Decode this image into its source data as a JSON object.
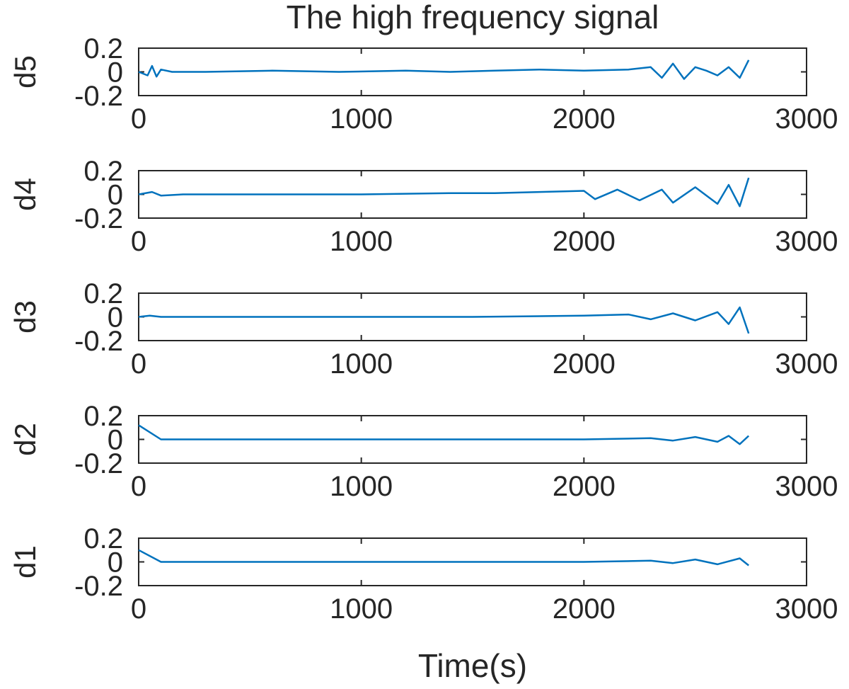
{
  "figure": {
    "title": "The high frequency signal",
    "xlabel": "Time(s)",
    "line_color": "#0072BD",
    "axis_color": "#262626"
  },
  "chart_data": [
    {
      "type": "line",
      "ylabel": "d5",
      "xlim": [
        0,
        3000
      ],
      "ylim": [
        -0.2,
        0.2
      ],
      "xticks": [
        "0",
        "1000",
        "2000",
        "3000"
      ],
      "yticks": [
        "0.2",
        "0",
        "-0.2"
      ],
      "series": [
        {
          "x": [
            0,
            40,
            60,
            80,
            100,
            150,
            300,
            600,
            900,
            1200,
            1400,
            1600,
            1800,
            2000,
            2200,
            2300,
            2350,
            2400,
            2450,
            2500,
            2550,
            2600,
            2650,
            2700,
            2740
          ],
          "y": [
            0,
            -0.03,
            0.05,
            -0.04,
            0.02,
            0,
            0,
            0.01,
            0,
            0.01,
            0,
            0.01,
            0.02,
            0.01,
            0.02,
            0.04,
            -0.05,
            0.07,
            -0.06,
            0.04,
            0.01,
            -0.03,
            0.04,
            -0.05,
            0.1
          ]
        }
      ]
    },
    {
      "type": "line",
      "ylabel": "d4",
      "xlim": [
        0,
        3000
      ],
      "ylim": [
        -0.2,
        0.2
      ],
      "xticks": [
        "0",
        "1000",
        "2000",
        "3000"
      ],
      "yticks": [
        "0.2",
        "0",
        "-0.2"
      ],
      "series": [
        {
          "x": [
            0,
            60,
            100,
            200,
            600,
            1000,
            1400,
            1600,
            1800,
            2000,
            2050,
            2150,
            2250,
            2350,
            2400,
            2500,
            2600,
            2650,
            2700,
            2740
          ],
          "y": [
            0,
            0.02,
            -0.01,
            0,
            0,
            0,
            0.01,
            0.01,
            0.02,
            0.03,
            -0.04,
            0.04,
            -0.05,
            0.04,
            -0.07,
            0.06,
            -0.08,
            0.08,
            -0.1,
            0.14
          ]
        }
      ]
    },
    {
      "type": "line",
      "ylabel": "d3",
      "xlim": [
        0,
        3000
      ],
      "ylim": [
        -0.2,
        0.2
      ],
      "xticks": [
        "0",
        "1000",
        "2000",
        "3000"
      ],
      "yticks": [
        "0.2",
        "0",
        "-0.2"
      ],
      "series": [
        {
          "x": [
            0,
            50,
            100,
            500,
            1000,
            1500,
            2000,
            2200,
            2300,
            2400,
            2500,
            2600,
            2650,
            2700,
            2740
          ],
          "y": [
            0,
            0.01,
            0,
            0,
            0,
            0,
            0.01,
            0.02,
            -0.02,
            0.03,
            -0.03,
            0.04,
            -0.06,
            0.08,
            -0.14
          ]
        }
      ]
    },
    {
      "type": "line",
      "ylabel": "d2",
      "xlim": [
        0,
        3000
      ],
      "ylim": [
        -0.2,
        0.2
      ],
      "xticks": [
        "0",
        "1000",
        "2000",
        "3000"
      ],
      "yticks": [
        "0.2",
        "0",
        "-0.2"
      ],
      "series": [
        {
          "x": [
            0,
            100,
            500,
            1000,
            1500,
            2000,
            2300,
            2400,
            2500,
            2600,
            2650,
            2700,
            2740
          ],
          "y": [
            0.12,
            0,
            0,
            0,
            0,
            0,
            0.01,
            -0.01,
            0.02,
            -0.02,
            0.03,
            -0.04,
            0.03
          ]
        }
      ]
    },
    {
      "type": "line",
      "ylabel": "d1",
      "xlim": [
        0,
        3000
      ],
      "ylim": [
        -0.2,
        0.2
      ],
      "xticks": [
        "0",
        "1000",
        "2000",
        "3000"
      ],
      "yticks": [
        "0.2",
        "0",
        "-0.2"
      ],
      "series": [
        {
          "x": [
            0,
            100,
            500,
            1000,
            1500,
            2000,
            2300,
            2400,
            2500,
            2600,
            2700,
            2740
          ],
          "y": [
            0.1,
            0,
            0,
            0,
            0,
            0,
            0.01,
            -0.01,
            0.02,
            -0.02,
            0.03,
            -0.03
          ]
        }
      ]
    }
  ]
}
